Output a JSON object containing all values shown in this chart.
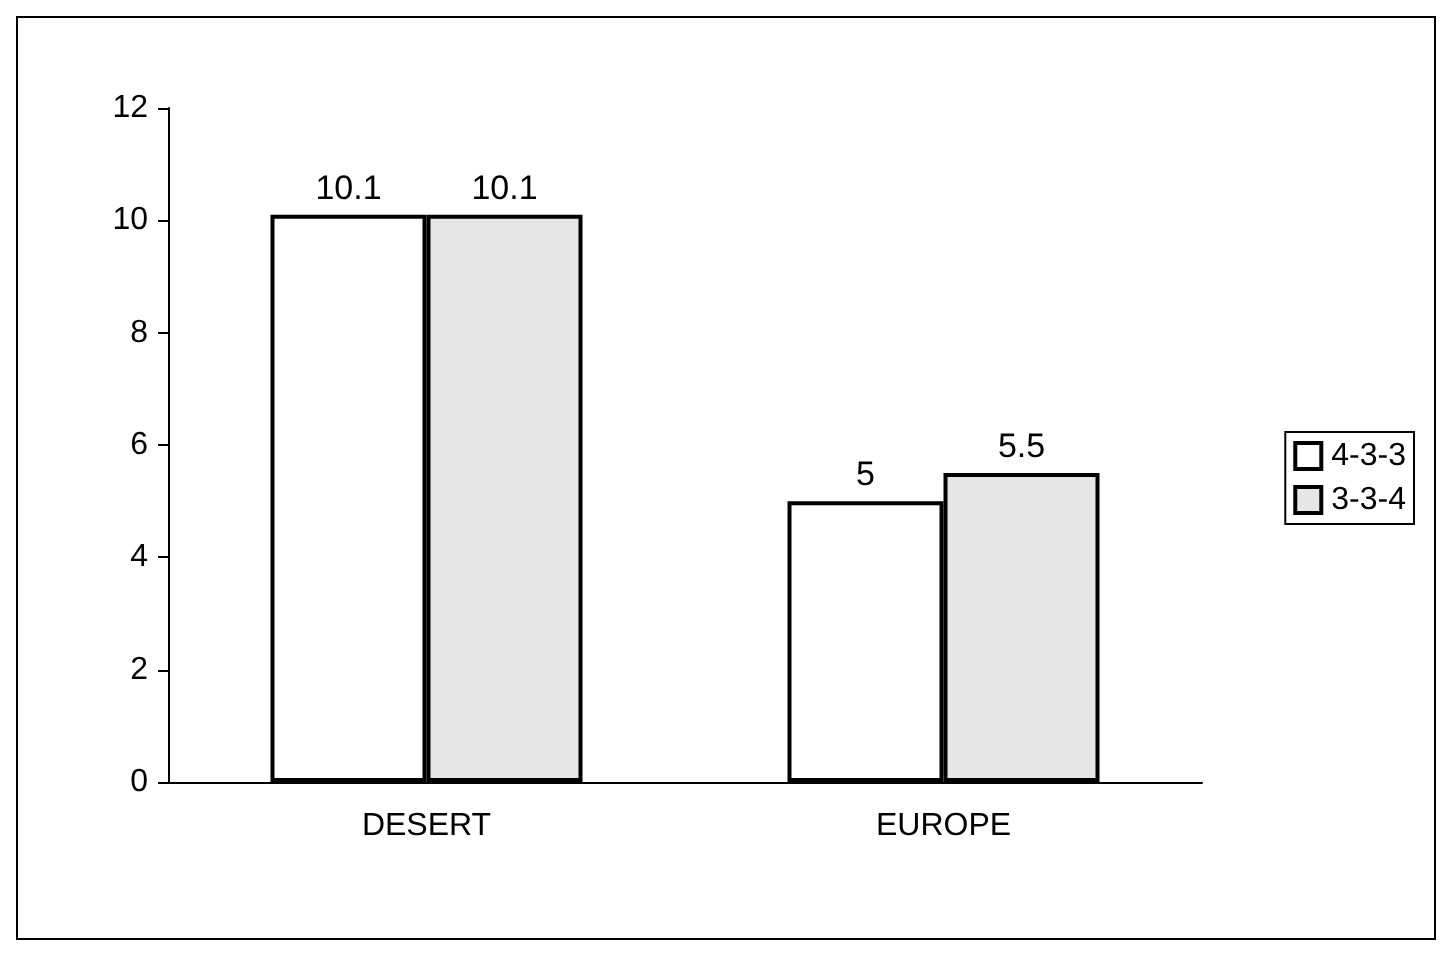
{
  "chart_data": {
    "type": "bar",
    "categories": [
      "DESERT",
      "EUROPE"
    ],
    "series": [
      {
        "name": "4-3-3",
        "color": "#ffffff",
        "values": [
          10.1,
          5
        ]
      },
      {
        "name": "3-3-4",
        "color": "#e6e6e6",
        "values": [
          10.1,
          5.5
        ]
      }
    ],
    "ylim": [
      0,
      12
    ],
    "yticks": [
      0,
      2,
      4,
      6,
      8,
      10,
      12
    ],
    "grid": false,
    "legend": "right",
    "data_labels": true
  }
}
